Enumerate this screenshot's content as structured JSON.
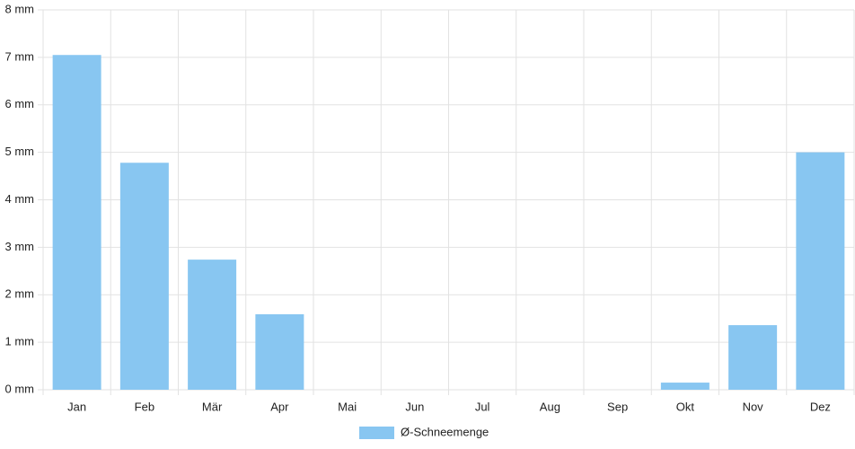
{
  "chart_data": {
    "type": "bar",
    "categories": [
      "Jan",
      "Feb",
      "Mär",
      "Apr",
      "Mai",
      "Jun",
      "Jul",
      "Aug",
      "Sep",
      "Okt",
      "Nov",
      "Dez"
    ],
    "series": [
      {
        "name": "Ø-Schneemenge",
        "color": "#88c6f1",
        "values": [
          7.05,
          4.78,
          2.74,
          1.59,
          0,
          0,
          0,
          0,
          0,
          0.15,
          1.36,
          5.0
        ]
      }
    ],
    "ylim": [
      0,
      8
    ],
    "yticks": [
      {
        "value": 0,
        "label": "0 mm"
      },
      {
        "value": 1,
        "label": "1 mm"
      },
      {
        "value": 2,
        "label": "2 mm"
      },
      {
        "value": 3,
        "label": "3 mm"
      },
      {
        "value": 4,
        "label": "4 mm"
      },
      {
        "value": 5,
        "label": "5 mm"
      },
      {
        "value": 6,
        "label": "6 mm"
      },
      {
        "value": 7,
        "label": "7 mm"
      },
      {
        "value": 8,
        "label": "8 mm"
      }
    ],
    "grid": true,
    "legend": "bottom"
  }
}
